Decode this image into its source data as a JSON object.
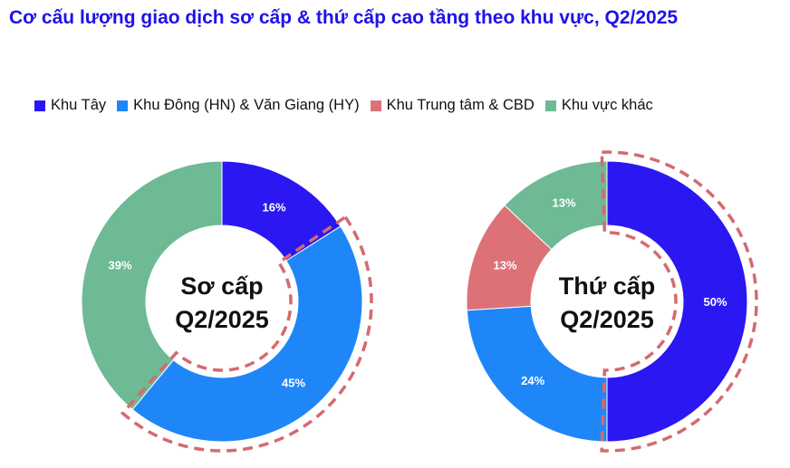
{
  "title": "Cơ cấu lượng giao dịch sơ cấp & thứ cấp cao tầng theo khu vực, Q2/2025",
  "legend": [
    {
      "label": "Khu Tây",
      "color": "#2a17f2"
    },
    {
      "label": "Khu Đông (HN) & Văn Giang (HY)",
      "color": "#1f86f7"
    },
    {
      "label": "Khu Trung tâm & CBD",
      "color": "#dd7178"
    },
    {
      "label": "Khu vực khác",
      "color": "#6dba94"
    }
  ],
  "highlight_color": "#d46a70",
  "chart_data": [
    {
      "type": "pie",
      "center_label": [
        "Sơ cấp",
        "Q2/2025"
      ],
      "categories": [
        "Khu Tây",
        "Khu Đông (HN) & Văn Giang (HY)",
        "Khu Trung tâm & CBD",
        "Khu vực khác"
      ],
      "values": [
        16,
        45,
        0,
        39
      ],
      "labels": [
        "16%",
        "45%",
        "",
        "39%"
      ],
      "highlighted": "Khu Đông (HN) & Văn Giang (HY)"
    },
    {
      "type": "pie",
      "center_label": [
        "Thứ cấp",
        "Q2/2025"
      ],
      "categories": [
        "Khu Tây",
        "Khu Đông (HN) & Văn Giang (HY)",
        "Khu Trung tâm & CBD",
        "Khu vực khác"
      ],
      "values": [
        50,
        24,
        13,
        13
      ],
      "labels": [
        "50%",
        "24%",
        "13%",
        "13%"
      ],
      "highlighted": "Khu Tây"
    }
  ]
}
